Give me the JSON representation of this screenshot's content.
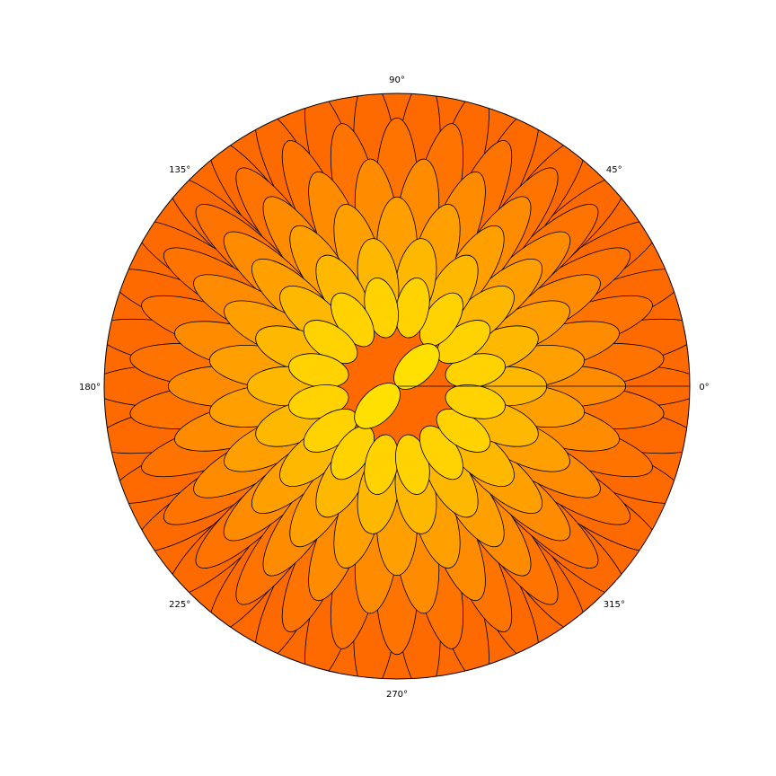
{
  "chart_data": {
    "type": "polar-filled-rose",
    "title": "",
    "axis_labels": {
      "theta_ticks": [
        "0°",
        "45°",
        "90°",
        "135°",
        "180°",
        "225°",
        "270°",
        "315°"
      ],
      "theta_tick_degrees": [
        0,
        45,
        90,
        135,
        180,
        225,
        270,
        315
      ]
    },
    "radial_tick_labels": [],
    "grid": false,
    "series": {
      "description_free": true,
      "layers": [
        {
          "rank": 1,
          "color": "#ffe000",
          "lobes": 2
        },
        {
          "rank": 2,
          "color": "#ffd200",
          "lobes": 16
        },
        {
          "rank": 3,
          "color": "#ffb800",
          "lobes": 18
        },
        {
          "rank": 4,
          "color": "#ff9f00",
          "lobes": 22
        },
        {
          "rank": 5,
          "color": "#ff8c00",
          "lobes": 26
        },
        {
          "rank": 6,
          "color": "#ff7300",
          "lobes": 30
        },
        {
          "rank": 7,
          "color": "#ff6a00",
          "lobes": 34
        }
      ]
    },
    "colors": {
      "outline": "#000000",
      "background": "#ffffff"
    }
  }
}
